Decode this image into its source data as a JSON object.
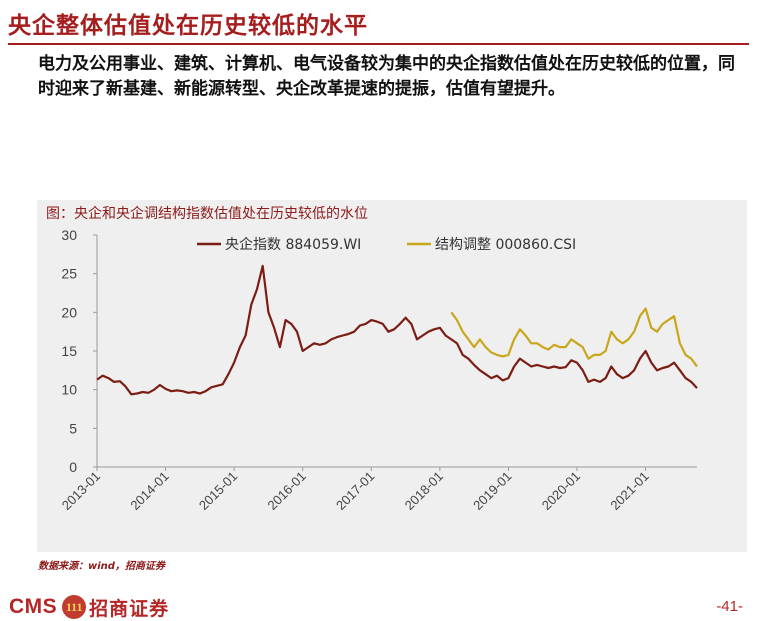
{
  "slide": {
    "title": "央企整体估值处在历史较低的水平",
    "body": "电力及公用事业、建筑、计算机、电气设备较为集中的央企指数估值处在历史较低的位置，同时迎来了新基建、新能源转型、央企改革提速的提振，估值有望提升。",
    "source": "数据来源：wind，招商证券",
    "page_number": "-41-",
    "brand_latin": "CMS",
    "brand_mark": "111",
    "brand_cn": "招商证券"
  },
  "colors": {
    "brand_red": "#a51d1d",
    "series_1": "#7a1e14",
    "series_2": "#c9a61c",
    "chart_bg": "#efefef"
  },
  "chart_data": {
    "type": "line",
    "title": "图：央企和央企调结构指数估值处在历史较低的水位",
    "xlabel": "",
    "ylabel": "",
    "ylim": [
      0,
      30
    ],
    "yticks": [
      0,
      5,
      10,
      15,
      20,
      25,
      30
    ],
    "xlim": [
      "2013-01",
      "2021-10"
    ],
    "xticks": [
      "2013-01",
      "2014-01",
      "2015-01",
      "2016-01",
      "2017-01",
      "2018-01",
      "2019-01",
      "2020-01",
      "2021-01"
    ],
    "grid": false,
    "legend_position": "top",
    "series": [
      {
        "name": "央企指数 884059.WI",
        "color": "#7a1e14",
        "points": [
          [
            "2013-01",
            11.3
          ],
          [
            "2013-02",
            11.8
          ],
          [
            "2013-03",
            11.5
          ],
          [
            "2013-04",
            11.0
          ],
          [
            "2013-05",
            11.1
          ],
          [
            "2013-06",
            10.4
          ],
          [
            "2013-07",
            9.4
          ],
          [
            "2013-08",
            9.5
          ],
          [
            "2013-09",
            9.7
          ],
          [
            "2013-10",
            9.6
          ],
          [
            "2013-11",
            10.0
          ],
          [
            "2013-12",
            10.6
          ],
          [
            "2014-01",
            10.1
          ],
          [
            "2014-02",
            9.8
          ],
          [
            "2014-03",
            9.9
          ],
          [
            "2014-04",
            9.8
          ],
          [
            "2014-05",
            9.6
          ],
          [
            "2014-06",
            9.7
          ],
          [
            "2014-07",
            9.5
          ],
          [
            "2014-08",
            9.8
          ],
          [
            "2014-09",
            10.3
          ],
          [
            "2014-10",
            10.5
          ],
          [
            "2014-11",
            10.7
          ],
          [
            "2014-12",
            12.0
          ],
          [
            "2015-01",
            13.5
          ],
          [
            "2015-02",
            15.5
          ],
          [
            "2015-03",
            17.0
          ],
          [
            "2015-04",
            21.0
          ],
          [
            "2015-05",
            23.0
          ],
          [
            "2015-06",
            26.0
          ],
          [
            "2015-07",
            20.0
          ],
          [
            "2015-08",
            18.0
          ],
          [
            "2015-09",
            15.5
          ],
          [
            "2015-10",
            19.0
          ],
          [
            "2015-11",
            18.5
          ],
          [
            "2015-12",
            17.5
          ],
          [
            "2016-01",
            15.0
          ],
          [
            "2016-02",
            15.5
          ],
          [
            "2016-03",
            16.0
          ],
          [
            "2016-04",
            15.8
          ],
          [
            "2016-05",
            16.0
          ],
          [
            "2016-06",
            16.5
          ],
          [
            "2016-07",
            16.8
          ],
          [
            "2016-08",
            17.0
          ],
          [
            "2016-09",
            17.2
          ],
          [
            "2016-10",
            17.5
          ],
          [
            "2016-11",
            18.3
          ],
          [
            "2016-12",
            18.5
          ],
          [
            "2017-01",
            19.0
          ],
          [
            "2017-02",
            18.8
          ],
          [
            "2017-03",
            18.5
          ],
          [
            "2017-04",
            17.5
          ],
          [
            "2017-05",
            17.8
          ],
          [
            "2017-06",
            18.5
          ],
          [
            "2017-07",
            19.3
          ],
          [
            "2017-08",
            18.5
          ],
          [
            "2017-09",
            16.5
          ],
          [
            "2017-10",
            17.0
          ],
          [
            "2017-11",
            17.5
          ],
          [
            "2017-12",
            17.8
          ],
          [
            "2018-01",
            18.0
          ],
          [
            "2018-02",
            17.0
          ],
          [
            "2018-03",
            16.5
          ],
          [
            "2018-04",
            16.0
          ],
          [
            "2018-05",
            14.5
          ],
          [
            "2018-06",
            14.0
          ],
          [
            "2018-07",
            13.2
          ],
          [
            "2018-08",
            12.5
          ],
          [
            "2018-09",
            12.0
          ],
          [
            "2018-10",
            11.5
          ],
          [
            "2018-11",
            11.8
          ],
          [
            "2018-12",
            11.2
          ],
          [
            "2019-01",
            11.5
          ],
          [
            "2019-02",
            13.0
          ],
          [
            "2019-03",
            14.0
          ],
          [
            "2019-04",
            13.5
          ],
          [
            "2019-05",
            13.0
          ],
          [
            "2019-06",
            13.2
          ],
          [
            "2019-07",
            13.0
          ],
          [
            "2019-08",
            12.8
          ],
          [
            "2019-09",
            13.0
          ],
          [
            "2019-10",
            12.8
          ],
          [
            "2019-11",
            12.9
          ],
          [
            "2019-12",
            13.8
          ],
          [
            "2020-01",
            13.5
          ],
          [
            "2020-02",
            12.5
          ],
          [
            "2020-03",
            11.0
          ],
          [
            "2020-04",
            11.3
          ],
          [
            "2020-05",
            11.0
          ],
          [
            "2020-06",
            11.5
          ],
          [
            "2020-07",
            13.0
          ],
          [
            "2020-08",
            12.0
          ],
          [
            "2020-09",
            11.5
          ],
          [
            "2020-10",
            11.8
          ],
          [
            "2020-11",
            12.5
          ],
          [
            "2020-12",
            14.0
          ],
          [
            "2021-01",
            15.0
          ],
          [
            "2021-02",
            13.5
          ],
          [
            "2021-03",
            12.5
          ],
          [
            "2021-04",
            12.8
          ],
          [
            "2021-05",
            13.0
          ],
          [
            "2021-06",
            13.5
          ],
          [
            "2021-07",
            12.5
          ],
          [
            "2021-08",
            11.5
          ],
          [
            "2021-09",
            11.0
          ],
          [
            "2021-10",
            10.2
          ]
        ]
      },
      {
        "name": "结构调整 000860.CSI",
        "color": "#c9a61c",
        "points": [
          [
            "2018-03",
            20.0
          ],
          [
            "2018-04",
            19.0
          ],
          [
            "2018-05",
            17.5
          ],
          [
            "2018-06",
            16.5
          ],
          [
            "2018-07",
            15.5
          ],
          [
            "2018-08",
            16.5
          ],
          [
            "2018-09",
            15.5
          ],
          [
            "2018-10",
            14.8
          ],
          [
            "2018-11",
            14.5
          ],
          [
            "2018-12",
            14.3
          ],
          [
            "2019-01",
            14.5
          ],
          [
            "2019-02",
            16.5
          ],
          [
            "2019-03",
            17.8
          ],
          [
            "2019-04",
            17.0
          ],
          [
            "2019-05",
            16.0
          ],
          [
            "2019-06",
            16.0
          ],
          [
            "2019-07",
            15.5
          ],
          [
            "2019-08",
            15.2
          ],
          [
            "2019-09",
            15.8
          ],
          [
            "2019-10",
            15.5
          ],
          [
            "2019-11",
            15.5
          ],
          [
            "2019-12",
            16.5
          ],
          [
            "2020-01",
            16.0
          ],
          [
            "2020-02",
            15.5
          ],
          [
            "2020-03",
            14.0
          ],
          [
            "2020-04",
            14.5
          ],
          [
            "2020-05",
            14.5
          ],
          [
            "2020-06",
            15.0
          ],
          [
            "2020-07",
            17.5
          ],
          [
            "2020-08",
            16.5
          ],
          [
            "2020-09",
            16.0
          ],
          [
            "2020-10",
            16.5
          ],
          [
            "2020-11",
            17.5
          ],
          [
            "2020-12",
            19.5
          ],
          [
            "2021-01",
            20.5
          ],
          [
            "2021-02",
            18.0
          ],
          [
            "2021-03",
            17.5
          ],
          [
            "2021-04",
            18.5
          ],
          [
            "2021-05",
            19.0
          ],
          [
            "2021-06",
            19.5
          ],
          [
            "2021-07",
            16.0
          ],
          [
            "2021-08",
            14.5
          ],
          [
            "2021-09",
            14.0
          ],
          [
            "2021-10",
            13.0
          ]
        ]
      }
    ]
  }
}
